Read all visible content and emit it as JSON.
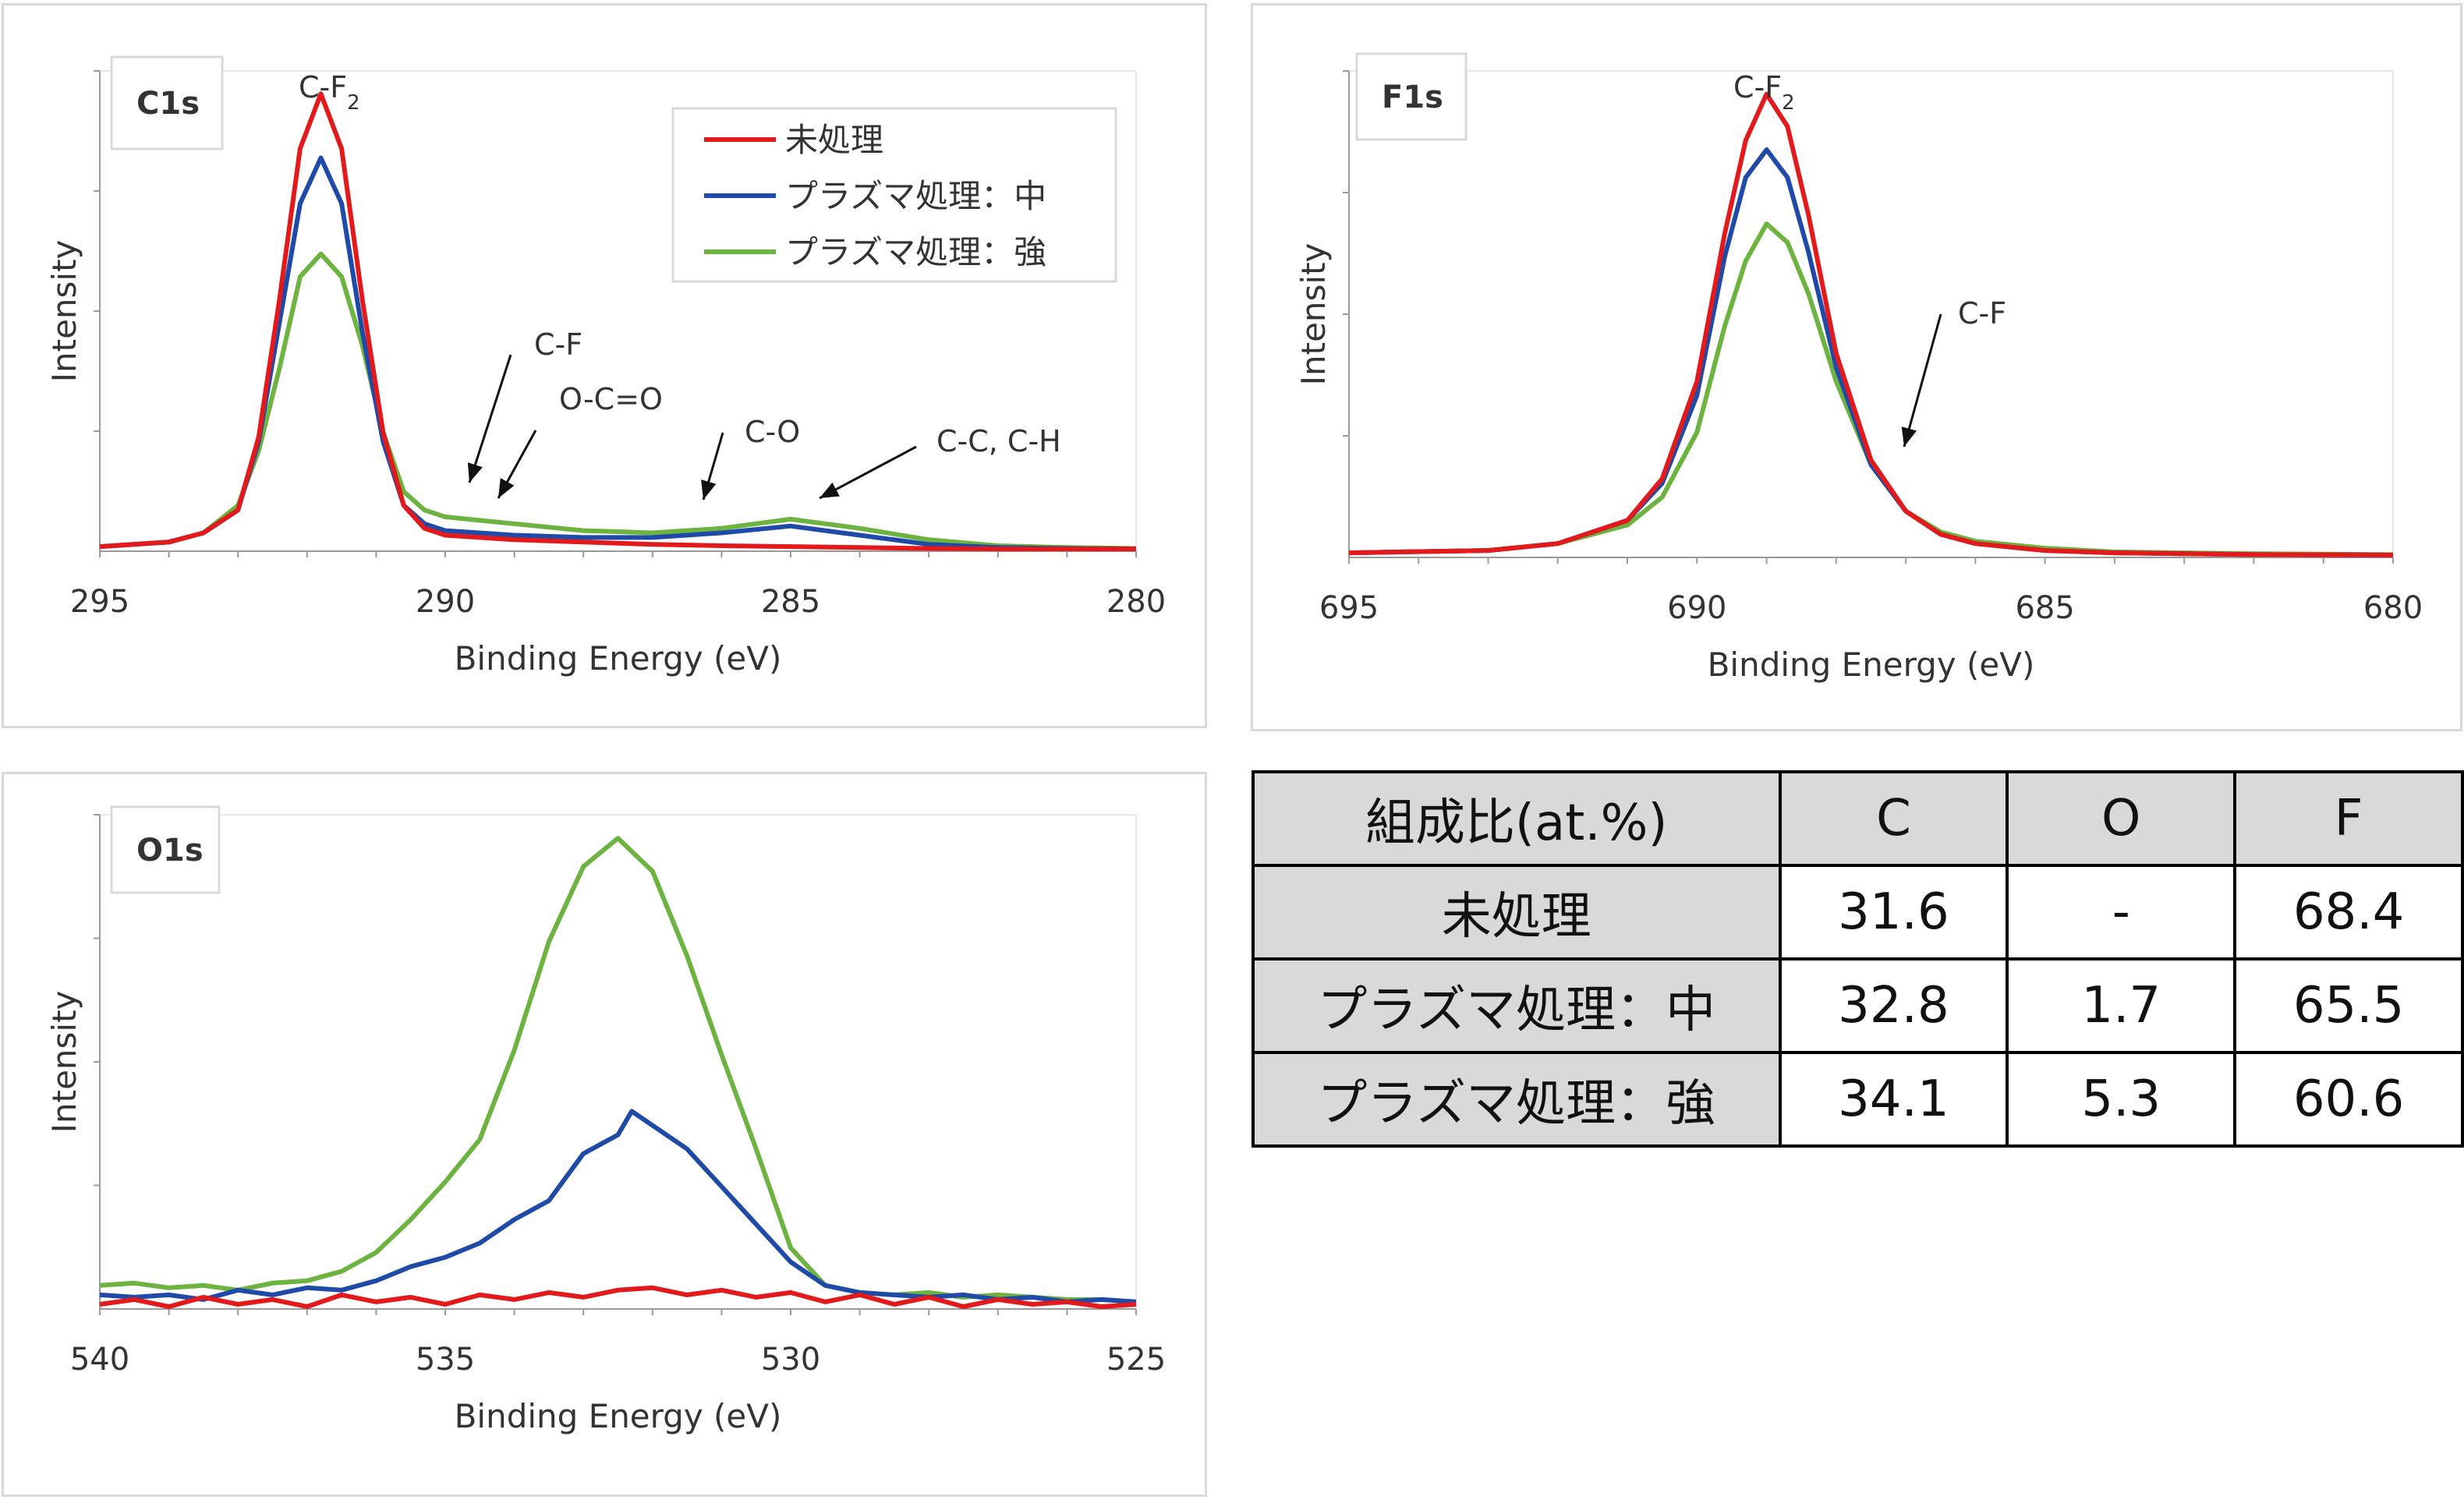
{
  "colors": {
    "untreated": "#e31a1c",
    "plasma_medium": "#1f4aa8",
    "plasma_strong": "#6cb33f"
  },
  "legend": [
    "未処理",
    "プラズマ処理：中",
    "プラズマ処理：強"
  ],
  "chart_data": [
    {
      "type": "line",
      "panel_label": "C1s",
      "xlabel": "Binding Energy (eV)",
      "ylabel": "Intensity",
      "xlim": [
        295,
        280
      ],
      "x_reversed": true,
      "ylim": [
        0,
        1.05
      ],
      "xticks": [
        "295",
        "290",
        "285",
        "280"
      ],
      "legend_position": "top-right",
      "annotations": [
        {
          "text": "C-F",
          "sub": "2",
          "at_eV": 291.8
        },
        {
          "text": "C-F",
          "sub": "",
          "arrow_to_eV": 289.5
        },
        {
          "text": "O-C=O",
          "sub": "",
          "arrow_to_eV": 289.0
        },
        {
          "text": "C-O",
          "sub": "",
          "arrow_to_eV": 286.5
        },
        {
          "text": "C-C, C-H",
          "sub": "",
          "arrow_to_eV": 285.0
        }
      ],
      "series": [
        {
          "name": "未処理",
          "color": "#e31a1c",
          "x": [
            295,
            294,
            293.5,
            293,
            292.7,
            292.4,
            292.1,
            291.8,
            291.5,
            291.2,
            290.9,
            290.6,
            290.3,
            290,
            289,
            288,
            287,
            286,
            285,
            284,
            283,
            282,
            281,
            280
          ],
          "y": [
            0.01,
            0.02,
            0.04,
            0.09,
            0.25,
            0.55,
            0.88,
            1.0,
            0.88,
            0.55,
            0.26,
            0.1,
            0.05,
            0.035,
            0.025,
            0.02,
            0.015,
            0.012,
            0.01,
            0.008,
            0.006,
            0.005,
            0.005,
            0.005
          ]
        },
        {
          "name": "プラズマ処理：中",
          "color": "#1f4aa8",
          "x": [
            295,
            294,
            293.5,
            293,
            292.7,
            292.4,
            292.1,
            291.8,
            291.5,
            291.2,
            290.9,
            290.6,
            290.3,
            290,
            289,
            288,
            287,
            286,
            285,
            284,
            283,
            282,
            281,
            280
          ],
          "y": [
            0.01,
            0.02,
            0.04,
            0.09,
            0.24,
            0.5,
            0.76,
            0.86,
            0.76,
            0.48,
            0.24,
            0.1,
            0.06,
            0.045,
            0.035,
            0.03,
            0.03,
            0.04,
            0.055,
            0.035,
            0.015,
            0.008,
            0.006,
            0.005
          ]
        },
        {
          "name": "プラズマ処理：強",
          "color": "#6cb33f",
          "x": [
            295,
            294,
            293.5,
            293,
            292.7,
            292.4,
            292.1,
            291.8,
            291.5,
            291.2,
            290.9,
            290.6,
            290.3,
            290,
            289,
            288,
            287,
            286,
            285,
            284,
            283,
            282,
            281,
            280
          ],
          "y": [
            0.01,
            0.02,
            0.04,
            0.1,
            0.22,
            0.4,
            0.6,
            0.65,
            0.6,
            0.45,
            0.26,
            0.13,
            0.09,
            0.075,
            0.06,
            0.045,
            0.04,
            0.05,
            0.07,
            0.05,
            0.025,
            0.012,
            0.008,
            0.006
          ]
        }
      ]
    },
    {
      "type": "line",
      "panel_label": "F1s",
      "xlabel": "Binding Energy (eV)",
      "ylabel": "Intensity",
      "xlim": [
        695,
        680
      ],
      "x_reversed": true,
      "ylim": [
        0,
        1.05
      ],
      "xticks": [
        "695",
        "690",
        "685",
        "680"
      ],
      "annotations": [
        {
          "text": "C-F",
          "sub": "2",
          "at_eV": 689.0
        },
        {
          "text": "C-F",
          "sub": "",
          "arrow_to_eV": 687.8
        }
      ],
      "series": [
        {
          "name": "未処理",
          "color": "#e31a1c",
          "x": [
            695,
            693,
            692,
            691,
            690.5,
            690,
            689.6,
            689.3,
            689,
            688.7,
            688.4,
            688,
            687.5,
            687,
            686.5,
            686,
            685,
            684,
            682,
            680
          ],
          "y": [
            0.01,
            0.015,
            0.03,
            0.08,
            0.17,
            0.38,
            0.7,
            0.9,
            1.0,
            0.93,
            0.74,
            0.44,
            0.21,
            0.1,
            0.05,
            0.03,
            0.015,
            0.01,
            0.006,
            0.005
          ]
        },
        {
          "name": "プラズマ処理：中",
          "color": "#1f4aa8",
          "x": [
            695,
            693,
            692,
            691,
            690.5,
            690,
            689.6,
            689.3,
            689,
            688.7,
            688.4,
            688,
            687.5,
            687,
            686.5,
            686,
            685,
            684,
            682,
            680
          ],
          "y": [
            0.01,
            0.015,
            0.03,
            0.08,
            0.16,
            0.35,
            0.65,
            0.82,
            0.88,
            0.82,
            0.66,
            0.41,
            0.2,
            0.1,
            0.05,
            0.03,
            0.015,
            0.01,
            0.006,
            0.005
          ]
        },
        {
          "name": "プラズマ処理：強",
          "color": "#6cb33f",
          "x": [
            695,
            693,
            692,
            691,
            690.5,
            690,
            689.6,
            689.3,
            689,
            688.7,
            688.4,
            688,
            687.5,
            687,
            686.5,
            686,
            685,
            684,
            682,
            680
          ],
          "y": [
            0.01,
            0.015,
            0.03,
            0.07,
            0.13,
            0.27,
            0.5,
            0.64,
            0.72,
            0.68,
            0.57,
            0.38,
            0.2,
            0.1,
            0.055,
            0.035,
            0.02,
            0.012,
            0.008,
            0.006
          ]
        }
      ]
    },
    {
      "type": "line",
      "panel_label": "O1s",
      "xlabel": "Binding Energy (eV)",
      "ylabel": "Intensity",
      "xlim": [
        540,
        525
      ],
      "x_reversed": true,
      "ylim": [
        0,
        1.05
      ],
      "xticks": [
        "540",
        "535",
        "530",
        "525"
      ],
      "annotations": [],
      "series": [
        {
          "name": "未処理",
          "color": "#e31a1c",
          "x": [
            540,
            539.5,
            539,
            538.5,
            538,
            537.5,
            537,
            536.5,
            536,
            535.5,
            535,
            534.5,
            534,
            533.5,
            533,
            532.5,
            532,
            531.5,
            531,
            530.5,
            530,
            529.5,
            529,
            528.5,
            528,
            527.5,
            527,
            526.5,
            526,
            525.5,
            525
          ],
          "y": [
            0.01,
            0.02,
            0.005,
            0.025,
            0.01,
            0.02,
            0.005,
            0.03,
            0.015,
            0.025,
            0.01,
            0.03,
            0.02,
            0.035,
            0.025,
            0.04,
            0.045,
            0.03,
            0.04,
            0.025,
            0.035,
            0.015,
            0.03,
            0.01,
            0.025,
            0.005,
            0.02,
            0.01,
            0.015,
            0.005,
            0.01
          ]
        },
        {
          "name": "プラズマ処理：中",
          "color": "#1f4aa8",
          "x": [
            540,
            539.5,
            539,
            538.5,
            538,
            537.5,
            537,
            536.5,
            536,
            535.5,
            535,
            534.5,
            534,
            533.5,
            533,
            532.5,
            532.3,
            532,
            531.5,
            531,
            530.5,
            530,
            529.5,
            529,
            528.5,
            528,
            527.5,
            527,
            526.5,
            526,
            525.5,
            525
          ],
          "y": [
            0.03,
            0.025,
            0.03,
            0.02,
            0.04,
            0.03,
            0.045,
            0.04,
            0.06,
            0.09,
            0.11,
            0.14,
            0.19,
            0.23,
            0.33,
            0.37,
            0.42,
            0.39,
            0.34,
            0.26,
            0.18,
            0.1,
            0.05,
            0.035,
            0.03,
            0.025,
            0.03,
            0.02,
            0.025,
            0.015,
            0.02,
            0.015
          ]
        },
        {
          "name": "プラズマ処理：強",
          "color": "#6cb33f",
          "x": [
            540,
            539.5,
            539,
            538.5,
            538,
            537.5,
            537,
            536.5,
            536,
            535.5,
            535,
            534.5,
            534,
            533.5,
            533,
            532.5,
            532,
            531.5,
            531,
            530.5,
            530,
            529.5,
            529,
            528.5,
            528,
            527.5,
            527,
            526.5,
            526,
            525.5,
            525
          ],
          "y": [
            0.05,
            0.055,
            0.045,
            0.05,
            0.04,
            0.055,
            0.06,
            0.08,
            0.12,
            0.19,
            0.27,
            0.36,
            0.55,
            0.78,
            0.94,
            1.0,
            0.93,
            0.75,
            0.54,
            0.34,
            0.13,
            0.05,
            0.035,
            0.03,
            0.035,
            0.025,
            0.03,
            0.025,
            0.02,
            0.02,
            0.015
          ]
        }
      ]
    },
    {
      "type": "table",
      "header": [
        "組成比(at.%)",
        "C",
        "O",
        "F"
      ],
      "rows": [
        [
          "未処理",
          "31.6",
          "-",
          "68.4"
        ],
        [
          "プラズマ処理：中",
          "32.8",
          "1.7",
          "65.5"
        ],
        [
          "プラズマ処理：強",
          "34.1",
          "5.3",
          "60.6"
        ]
      ]
    }
  ]
}
